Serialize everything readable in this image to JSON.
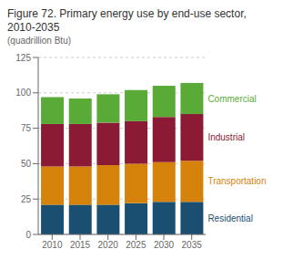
{
  "chart_data": {
    "type": "bar",
    "title": "Figure 72. Primary energy use by end-use sector,\n2010-2035",
    "subtitle": "(quadrillion Btu)",
    "categories": [
      "2010",
      "2015",
      "2020",
      "2025",
      "2030",
      "2035"
    ],
    "series": [
      {
        "name": "Residential",
        "color": "#1b4f72",
        "values": [
          21,
          21,
          21,
          22,
          23,
          23
        ]
      },
      {
        "name": "Transportation",
        "color": "#d4820a",
        "values": [
          27,
          27,
          28,
          28,
          28,
          29
        ]
      },
      {
        "name": "Industrial",
        "color": "#8b1a35",
        "values": [
          30,
          30,
          30,
          30,
          32,
          33
        ]
      },
      {
        "name": "Commercial",
        "color": "#5aaa38",
        "values": [
          19,
          18,
          20,
          22,
          22,
          22
        ]
      }
    ],
    "ylim": [
      0,
      125
    ],
    "yticks": [
      0,
      25,
      50,
      75,
      100,
      125
    ],
    "stacked": true,
    "grid": true
  }
}
